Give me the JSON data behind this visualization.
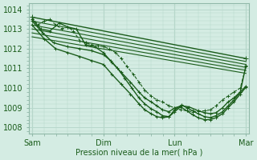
{
  "bg_color": "#d4ece3",
  "grid_color": "#b8d8cc",
  "line_color": "#1a5c1a",
  "xlabel": "Pression niveau de la mer( hPa )",
  "xtick_labels": [
    "Sam",
    "Dim",
    "Lun",
    "Mar"
  ],
  "xtick_positions": [
    0,
    1,
    2,
    3
  ],
  "ylim": [
    1007.7,
    1014.3
  ],
  "yticks": [
    1008,
    1009,
    1010,
    1011,
    1012,
    1013,
    1014
  ],
  "xlim": [
    -0.04,
    3.04
  ],
  "lines": [
    {
      "x": [
        0.0,
        0.08,
        0.17,
        0.25,
        0.33,
        0.42,
        0.5,
        0.58,
        0.67,
        0.75,
        0.83,
        0.92,
        1.0,
        1.08,
        1.17,
        1.25,
        1.33,
        1.42,
        1.5,
        1.58,
        1.67,
        1.75,
        1.83,
        1.92,
        2.0,
        2.08,
        2.17,
        2.25,
        2.33,
        2.42,
        2.5,
        2.58,
        2.67,
        2.75,
        2.83,
        2.92,
        3.0
      ],
      "y": [
        1013.6,
        1013.2,
        1013.4,
        1013.5,
        1013.2,
        1013.0,
        1013.1,
        1012.9,
        1012.4,
        1012.3,
        1012.2,
        1012.15,
        1012.1,
        1012.0,
        1011.8,
        1011.5,
        1011.1,
        1010.7,
        1010.3,
        1009.9,
        1009.6,
        1009.4,
        1009.3,
        1009.1,
        1009.0,
        1008.9,
        1008.85,
        1008.8,
        1008.82,
        1008.85,
        1008.9,
        1009.1,
        1009.4,
        1009.6,
        1009.8,
        1010.0,
        1011.1
      ],
      "marker": "+",
      "lw": 0.8,
      "ms": 3,
      "dashed": true
    },
    {
      "x": [
        0.0,
        3.0
      ],
      "y": [
        1013.6,
        1011.5
      ],
      "marker": "+",
      "lw": 1.0,
      "ms": 5,
      "dashed": false
    },
    {
      "x": [
        0.0,
        3.0
      ],
      "y": [
        1013.4,
        1011.35
      ],
      "marker": null,
      "lw": 0.8,
      "ms": 3,
      "dashed": false
    },
    {
      "x": [
        0.0,
        3.0
      ],
      "y": [
        1013.2,
        1011.2
      ],
      "marker": null,
      "lw": 0.8,
      "ms": 3,
      "dashed": false
    },
    {
      "x": [
        0.0,
        3.0
      ],
      "y": [
        1013.0,
        1011.05
      ],
      "marker": null,
      "lw": 0.8,
      "ms": 3,
      "dashed": false
    },
    {
      "x": [
        0.0,
        3.0
      ],
      "y": [
        1012.8,
        1010.9
      ],
      "marker": null,
      "lw": 0.8,
      "ms": 3,
      "dashed": false
    },
    {
      "x": [
        0.0,
        3.0
      ],
      "y": [
        1012.6,
        1010.75
      ],
      "marker": null,
      "lw": 0.8,
      "ms": 3,
      "dashed": false
    },
    {
      "x": [
        0.0,
        0.12,
        0.25,
        0.38,
        0.5,
        0.62,
        0.75,
        0.88,
        1.0,
        1.12,
        1.25,
        1.38,
        1.5,
        1.58,
        1.67,
        1.75,
        1.83,
        1.92,
        2.0,
        2.1,
        2.2,
        2.33,
        2.42,
        2.5,
        2.58,
        2.67,
        2.75,
        2.83,
        2.92,
        3.0
      ],
      "y": [
        1013.5,
        1013.0,
        1012.9,
        1013.3,
        1013.1,
        1013.0,
        1012.2,
        1012.1,
        1011.8,
        1011.3,
        1010.8,
        1010.3,
        1009.8,
        1009.5,
        1009.3,
        1009.1,
        1008.9,
        1008.8,
        1009.0,
        1009.1,
        1009.05,
        1008.85,
        1008.75,
        1008.7,
        1008.75,
        1009.0,
        1009.3,
        1009.5,
        1009.8,
        1011.15
      ],
      "marker": "+",
      "lw": 1.0,
      "ms": 3.5,
      "dashed": false
    },
    {
      "x": [
        0.0,
        0.15,
        0.3,
        0.5,
        0.67,
        0.83,
        1.0,
        1.1,
        1.2,
        1.3,
        1.4,
        1.5,
        1.58,
        1.67,
        1.75,
        1.83,
        1.92,
        2.0,
        2.1,
        2.17,
        2.25,
        2.33,
        2.42,
        2.5,
        2.58,
        2.67,
        2.75,
        2.83,
        2.92,
        3.0
      ],
      "y": [
        1013.4,
        1012.8,
        1012.3,
        1012.1,
        1012.0,
        1011.9,
        1011.7,
        1011.4,
        1011.0,
        1010.5,
        1010.0,
        1009.5,
        1009.2,
        1008.95,
        1008.8,
        1008.6,
        1008.55,
        1008.9,
        1009.15,
        1009.0,
        1008.85,
        1008.7,
        1008.55,
        1008.5,
        1008.6,
        1008.8,
        1009.1,
        1009.4,
        1009.8,
        1010.1
      ],
      "marker": "+",
      "lw": 1.0,
      "ms": 3.5,
      "dashed": false
    },
    {
      "x": [
        0.0,
        0.17,
        0.33,
        0.5,
        0.67,
        0.83,
        1.0,
        1.12,
        1.25,
        1.38,
        1.5,
        1.58,
        1.67,
        1.75,
        1.83,
        1.92,
        2.0,
        2.08,
        2.17,
        2.25,
        2.33,
        2.42,
        2.5,
        2.58,
        2.67,
        2.75,
        2.83,
        2.92,
        3.0
      ],
      "y": [
        1013.2,
        1012.5,
        1012.0,
        1011.8,
        1011.6,
        1011.4,
        1011.2,
        1010.7,
        1010.2,
        1009.7,
        1009.2,
        1008.9,
        1008.7,
        1008.55,
        1008.5,
        1008.55,
        1008.8,
        1009.05,
        1008.85,
        1008.65,
        1008.5,
        1008.4,
        1008.4,
        1008.5,
        1008.7,
        1009.0,
        1009.3,
        1009.7,
        1010.05
      ],
      "marker": "+",
      "lw": 1.0,
      "ms": 3.5,
      "dashed": false
    }
  ]
}
